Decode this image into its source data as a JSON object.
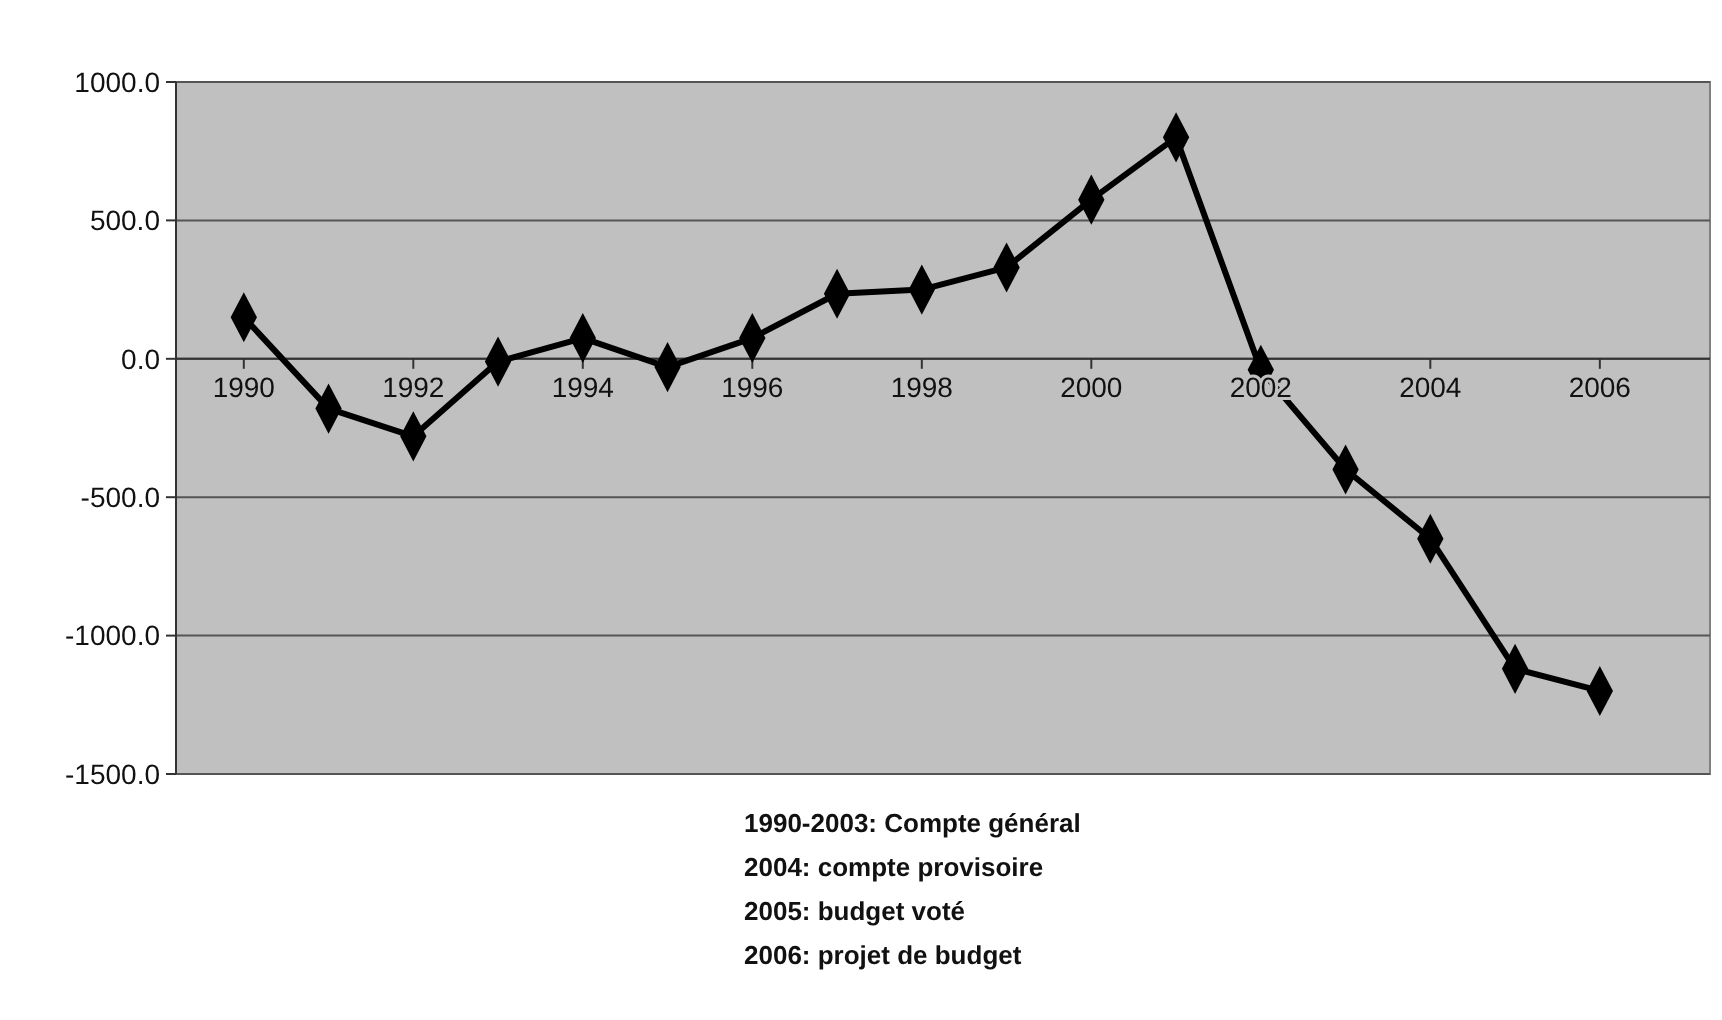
{
  "chart_data": {
    "type": "line",
    "x": [
      1990,
      1991,
      1992,
      1993,
      1994,
      1995,
      1996,
      1997,
      1998,
      1999,
      2000,
      2001,
      2002,
      2003,
      2004,
      2005,
      2006
    ],
    "values": [
      150,
      -180,
      -280,
      -10,
      75,
      -30,
      75,
      235,
      250,
      330,
      575,
      800,
      -40,
      -400,
      -650,
      -1120,
      -1200
    ],
    "color": "#000000",
    "marker": "diamond",
    "line_style": "solid",
    "grid": "y",
    "xlim": [
      1989.2,
      2007.3
    ],
    "xticks": [
      1990,
      1992,
      1994,
      1996,
      1998,
      2000,
      2002,
      2004,
      2006
    ],
    "ylim": [
      -1500,
      1000
    ],
    "yticks": [
      {
        "value": -1500,
        "label": "-1500.0"
      },
      {
        "value": -1000,
        "label": "-1000.0"
      },
      {
        "value": -500,
        "label": "-500.0"
      },
      {
        "value": 0,
        "label": "0.0"
      },
      {
        "value": 500,
        "label": "500.0"
      },
      {
        "value": 1000,
        "label": "1000.0"
      }
    ],
    "annotations": [
      "1990-2003: Compte général",
      "2004: compte provisoire",
      "2005: budget voté",
      "2006: projet de budget"
    ]
  }
}
